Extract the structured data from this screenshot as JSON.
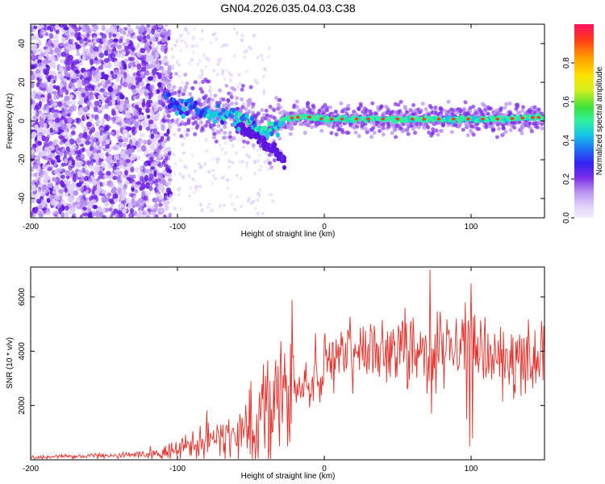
{
  "page_title": "GN04.2026.035.04.03.C38",
  "colors": {
    "series": "#e8302a",
    "frame": "#000000",
    "background": "#ffffff",
    "colormap": [
      "#f3eefc",
      "#ddccf8",
      "#b48af0",
      "#7a2be8",
      "#5a16e0",
      "#3322f0",
      "#1f6cf5",
      "#16c8e6",
      "#2ef0a0",
      "#3be23b",
      "#d4f01c",
      "#ffe000",
      "#ff9a00",
      "#ff3b1a",
      "#ff1060"
    ]
  },
  "chart_data": [
    {
      "type": "heatmap",
      "title": "GN04.2026.035.04.03.C38",
      "xlabel": "Height of straight line (km)",
      "ylabel": "Frequency (Hz)",
      "xlim": [
        -200,
        150
      ],
      "ylim": [
        -50,
        50
      ],
      "xticks": [
        -200,
        -100,
        0,
        100
      ],
      "yticks": [
        -40,
        -20,
        0,
        20,
        40
      ],
      "xtick_labels": [
        "-200",
        "-100",
        "0",
        "100"
      ],
      "ytick_labels": [
        "-40",
        "-20",
        "0",
        "20",
        "40"
      ],
      "colorbar": {
        "label": "Normalized spectral amplitude",
        "range": [
          0.0,
          1.0
        ],
        "ticks": [
          0.0,
          0.2,
          0.4,
          0.6,
          0.8
        ],
        "tick_labels": [
          "0.0",
          "0.2",
          "0.4",
          "0.6",
          "0.8"
        ]
      },
      "ridge": {
        "description": "dominant frequency trace vs height",
        "x": [
          -110,
          -100,
          -90,
          -80,
          -70,
          -60,
          -50,
          -45,
          -40,
          -35,
          -30,
          -25,
          -20,
          -10,
          0,
          20,
          40,
          60,
          80,
          100,
          120,
          150
        ],
        "y": [
          12,
          8,
          6,
          5,
          4,
          2,
          0,
          -3,
          -5,
          -4,
          0,
          1,
          2,
          2,
          1,
          1,
          1,
          1,
          1,
          1,
          1,
          2
        ]
      },
      "branch": {
        "description": "secondary descending branch",
        "x": [
          -60,
          -50,
          -45,
          -40,
          -35,
          -30,
          -27
        ],
        "y": [
          -2,
          -6,
          -8,
          -12,
          -14,
          -18,
          -21
        ]
      }
    },
    {
      "type": "line",
      "xlabel": "Height of straight line (km)",
      "ylabel": "SNR (10 * v/v)",
      "xlim": [
        -200,
        150
      ],
      "ylim": [
        0,
        7100
      ],
      "xticks": [
        -200,
        -100,
        0,
        100
      ],
      "yticks": [
        2000,
        4000,
        6000
      ],
      "xtick_labels": [
        "-200",
        "-100",
        "0",
        "100"
      ],
      "ytick_labels": [
        "2000",
        "4000",
        "6000"
      ],
      "series": [
        {
          "name": "SNR",
          "trend_x": [
            -200,
            -150,
            -125,
            -110,
            -100,
            -90,
            -80,
            -70,
            -60,
            -50,
            -40,
            -30,
            -25,
            -20,
            -10,
            0,
            10,
            20,
            30,
            40,
            50,
            60,
            70,
            80,
            90,
            100,
            110,
            120,
            130,
            140,
            150
          ],
          "trend_y": [
            100,
            150,
            200,
            250,
            400,
            550,
            700,
            900,
            1000,
            1300,
            1700,
            2100,
            2300,
            2500,
            2900,
            3300,
            3700,
            3900,
            4100,
            4150,
            4200,
            4150,
            4150,
            4100,
            4000,
            3800,
            3600,
            3700,
            3600,
            3600,
            3700
          ],
          "spikes": [
            {
              "x": -22,
              "y": 5900
            },
            {
              "x": -30,
              "y": 3600
            },
            {
              "x": -50,
              "y": 2900
            },
            {
              "x": 72,
              "y": 7000
            },
            {
              "x": 73,
              "y": 1700
            },
            {
              "x": 85,
              "y": 4800
            },
            {
              "x": 90,
              "y": 5200
            },
            {
              "x": 96,
              "y": 5800
            },
            {
              "x": 100,
              "y": 6500
            },
            {
              "x": 99,
              "y": 500
            },
            {
              "x": 101,
              "y": 800
            },
            {
              "x": 97,
              "y": 1500
            },
            {
              "x": 109,
              "y": 4700
            },
            {
              "x": 120,
              "y": 4900
            },
            {
              "x": 148,
              "y": 5100
            }
          ]
        }
      ]
    }
  ]
}
